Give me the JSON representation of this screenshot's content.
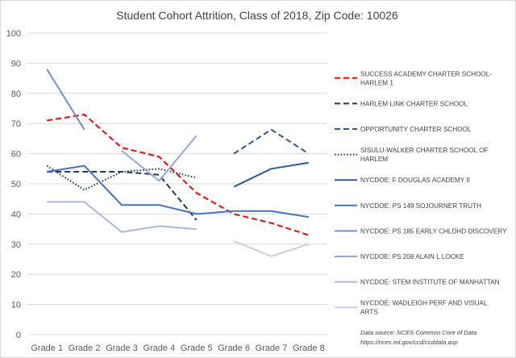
{
  "chart_data": {
    "type": "line",
    "title": "Student Cohort Attrition, Class of 2018, Zip Code: 10026",
    "xlabel": "",
    "ylabel": "",
    "ylim": [
      0,
      100
    ],
    "yticks": [
      0,
      10,
      20,
      30,
      40,
      50,
      60,
      70,
      80,
      90,
      100
    ],
    "categories": [
      "Grade 1",
      "Grade 2",
      "Grade 3",
      "Grade 4",
      "Grade 5",
      "Grade 6",
      "Grade 7",
      "Grade 8"
    ],
    "gridlines": true,
    "legend_position": "right",
    "series": [
      {
        "name_lines": [
          "SUCCESS ACADEMY CHARTER SCHOOL-",
          "HARLEM 1"
        ],
        "color": "#ff0000",
        "style": "dashed",
        "values": [
          71,
          73,
          62,
          59,
          47,
          40,
          37,
          33
        ]
      },
      {
        "name_lines": [
          "HARLEM LINK CHARTER SCHOOL"
        ],
        "color": "#1f3864",
        "style": "dashed",
        "values": [
          54,
          54,
          54,
          53,
          38,
          null,
          null,
          null
        ]
      },
      {
        "name_lines": [
          "OPPORTUNITY CHARTER SCHOOL"
        ],
        "color": "#2e5597",
        "style": "dashed",
        "values": [
          null,
          null,
          null,
          null,
          null,
          60,
          68,
          60
        ]
      },
      {
        "name_lines": [
          "SISULU-WALKER CHARTER SCHOOL OF",
          "HARLEM"
        ],
        "color": "#1f3864",
        "style": "dotted",
        "values": [
          56,
          48,
          54,
          55,
          52,
          null,
          null,
          null
        ]
      },
      {
        "name_lines": [
          "NYCDOE: F DOUGLAS ACADEMY II"
        ],
        "color": "#2e5c9a",
        "style": "solid",
        "values": [
          null,
          null,
          null,
          null,
          null,
          49,
          55,
          57
        ]
      },
      {
        "name_lines": [
          "NYCDOE: PS 149 SOJOURNER TRUTH"
        ],
        "color": "#4472c4",
        "style": "solid",
        "values": [
          54,
          56,
          43,
          43,
          40,
          41,
          41,
          39
        ]
      },
      {
        "name_lines": [
          "NYCDOE: PS 185 EARLY CHLDHD DISCOVERY"
        ],
        "color": "#6f8fcf",
        "style": "solid",
        "values": [
          88,
          68,
          null,
          null,
          null,
          null,
          null,
          null
        ]
      },
      {
        "name_lines": [
          "NYCDOE: PS 208 ALAIN L LOCKE"
        ],
        "color": "#8faadc",
        "style": "solid",
        "values": [
          null,
          null,
          61,
          51,
          66,
          null,
          null,
          null
        ]
      },
      {
        "name_lines": [
          "NYCDOE: STEM INSTITUTE OF MANHATTAN"
        ],
        "color": "#a9b8dc",
        "style": "solid",
        "values": [
          44,
          44,
          34,
          36,
          35,
          null,
          null,
          null
        ]
      },
      {
        "name_lines": [
          "NYCDOE: WADLEIGH PERF AND VISUAL",
          "ARTS"
        ],
        "color": "#c5d0e8",
        "style": "solid",
        "values": [
          null,
          null,
          null,
          null,
          null,
          31,
          26,
          30
        ]
      }
    ],
    "annotation_lines": [
      "Data source: NCES Common Core of Data",
      "https://nces.ed.gov/ccd/ccddata.asp"
    ]
  }
}
